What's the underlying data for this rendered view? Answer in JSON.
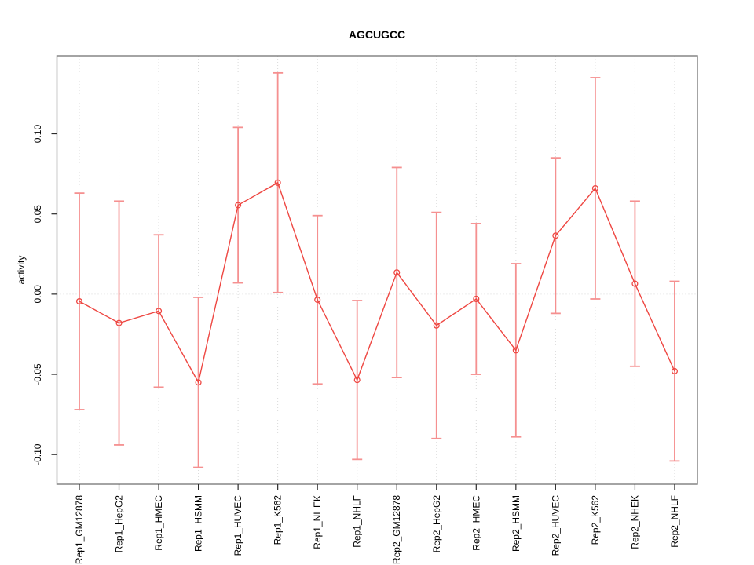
{
  "chart_data": {
    "type": "line",
    "subtype": "points-with-error-bars",
    "title": "AGCUGCC",
    "xlabel": "",
    "ylabel": "activity",
    "categories": [
      "Rep1_GM12878",
      "Rep1_HepG2",
      "Rep1_HMEC",
      "Rep1_HSMM",
      "Rep1_HUVEC",
      "Rep1_K562",
      "Rep1_NHEK",
      "Rep1_NHLF",
      "Rep2_GM12878",
      "Rep2_HepG2",
      "Rep2_HMEC",
      "Rep2_HSMM",
      "Rep2_HUVEC",
      "Rep2_K562",
      "Rep2_NHEK",
      "Rep2_NHLF"
    ],
    "series": [
      {
        "name": "activity",
        "values": [
          -0.0045,
          -0.018,
          -0.0105,
          -0.055,
          0.0555,
          0.0695,
          -0.0035,
          -0.0535,
          0.0135,
          -0.0195,
          -0.003,
          -0.035,
          0.0365,
          0.066,
          0.0065,
          -0.048
        ],
        "upper": [
          0.063,
          0.058,
          0.037,
          -0.002,
          0.104,
          0.138,
          0.049,
          -0.004,
          0.079,
          0.051,
          0.044,
          0.019,
          0.085,
          0.135,
          0.058,
          0.008
        ],
        "lower": [
          -0.072,
          -0.094,
          -0.058,
          -0.108,
          0.007,
          0.001,
          -0.056,
          -0.103,
          -0.052,
          -0.09,
          -0.05,
          -0.089,
          -0.012,
          -0.003,
          -0.045,
          -0.104
        ]
      }
    ],
    "marker": "open-circle",
    "error_bars": true,
    "ytick_labels": [
      "-0.10",
      "-0.05",
      "0.00",
      "0.05",
      "0.10"
    ],
    "ytick_values": [
      -0.1,
      -0.05,
      0.0,
      0.05,
      0.1
    ],
    "ylim": [
      -0.1185,
      0.1487
    ],
    "grid": "vertical-dotted-per-category",
    "zero_line": "dotted",
    "legend_position": "none",
    "colors": {
      "series_red": "#ee4742",
      "error_bar_pink": "#f59090",
      "grid_gray": "#d9d9d9",
      "zero_line_gray": "#d9d9d9",
      "box_gray": "#7d7d7d",
      "tick_black": "#2b2b2b",
      "text_black": "#000000",
      "background": "#ffffff"
    }
  }
}
